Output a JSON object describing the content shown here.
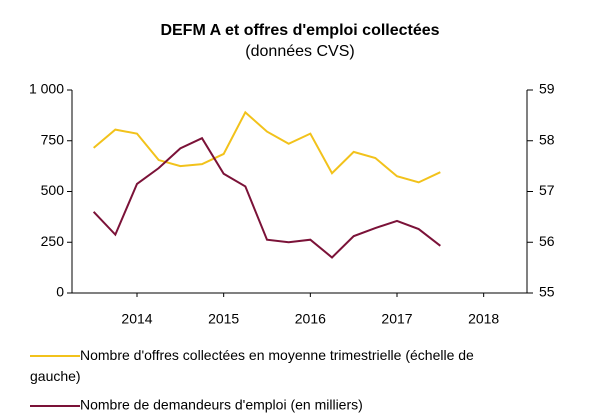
{
  "chart_data": {
    "type": "line",
    "title": "DEFM A et offres d'emploi collectées",
    "subtitle": "(données CVS)",
    "x": [
      2013.5,
      2013.75,
      2014,
      2014.25,
      2014.5,
      2014.75,
      2015,
      2015.25,
      2015.5,
      2015.75,
      2016,
      2016.25,
      2016.5,
      2016.75,
      2017,
      2017.25,
      2017.5
    ],
    "xlim": [
      2013.25,
      2018.5
    ],
    "xticks": [
      2014,
      2015,
      2016,
      2017,
      2018
    ],
    "ylim": [
      0,
      1000
    ],
    "yticks": [
      0,
      250,
      500,
      750,
      {
        "value": 1000,
        "label": "1 000"
      }
    ],
    "y2lim": [
      55,
      59
    ],
    "y2ticks": [
      55,
      56,
      57,
      58,
      59
    ],
    "series": [
      {
        "name": "Nombre d'offres collectées en moyenne trimestrielle (échelle de gauche)",
        "color": "#f2c21b",
        "values": [
          715,
          805,
          785,
          655,
          625,
          635,
          685,
          890,
          795,
          735,
          785,
          590,
          695,
          665,
          575,
          545,
          595
        ]
      },
      {
        "name": "Nombre de demandeurs d'emploi (en milliers)",
        "color": "#7b1238",
        "axis": "y2",
        "values": [
          56.6,
          56.15,
          57.15,
          57.46,
          57.85,
          58.05,
          57.35,
          57.1,
          56.05,
          56.0,
          56.05,
          55.7,
          56.12,
          56.28,
          56.42,
          56.26,
          55.93
        ]
      }
    ]
  }
}
